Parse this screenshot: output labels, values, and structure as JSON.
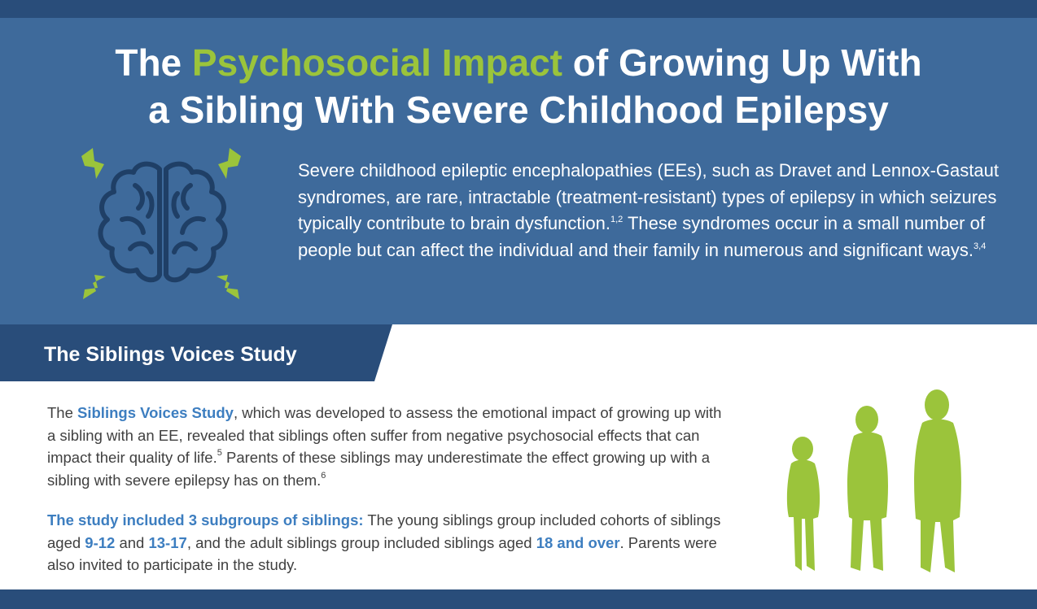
{
  "title": {
    "part1": "The ",
    "accent": "Psychosocial Impact",
    "part2": " of Growing Up With",
    "line2": "a Sibling With Severe Childhood Epilepsy"
  },
  "intro": {
    "text1": "Severe childhood epileptic encephalopathies (EEs), such as Dravet and Lennox-Gastaut syndromes, are rare, intractable (treatment-resistant) types of epilepsy in which seizures typically contribute to brain dysfunction.",
    "ref1": "1,2",
    "text2": " These syndromes occur in a small number of people but can affect the individual and their family in numerous and significant ways.",
    "ref2": "3,4"
  },
  "section": {
    "title": "The Siblings Voices Study"
  },
  "paragraph1": {
    "t1": "The ",
    "study_name": "Siblings Voices Study",
    "t2": ", which was developed to assess the emotional impact of growing up with a sibling with an EE, revealed that siblings often suffer from negative psychosocial effects that can impact their quality of life.",
    "ref1": "5",
    "t3": " Parents of these siblings may underestimate the effect growing up with a sibling with severe epilepsy has on them.",
    "ref2": "6"
  },
  "paragraph2": {
    "lead": "The study included 3 subgroups of siblings:",
    "t1": " The young siblings group included cohorts of siblings aged ",
    "age1": "9-12",
    "t2": " and ",
    "age2": "13-17",
    "t3": ", and the adult siblings group included siblings aged ",
    "age3": "18 and over",
    "t4": ". Parents were also invited to participate in the study."
  },
  "colors": {
    "hero_bg": "#3e6a9b",
    "dark_strip": "#294d7a",
    "accent_green": "#9bc43b",
    "highlight_blue": "#3d7ec0",
    "body_text": "#404040",
    "brain_outline": "#1f3f66"
  },
  "icons": {
    "brain": "brain-icon",
    "lightning": "lightning-bolt-icon",
    "siblings": "sibling-silhouettes-icon"
  }
}
